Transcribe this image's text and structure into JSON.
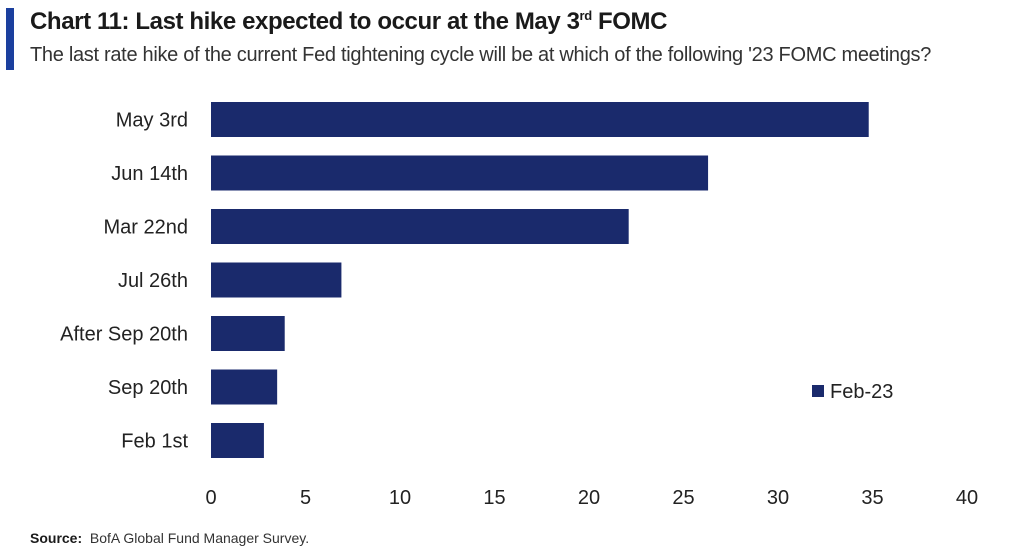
{
  "header": {
    "title_main": "Chart 11: Last hike expected to occur at the May 3",
    "title_sup": "rd",
    "title_end": " FOMC",
    "subtitle": "The last rate hike of the current Fed tightening cycle will be at which of the following '23 FOMC meetings?"
  },
  "source": {
    "label": "Source:",
    "text": "BofA Global Fund Manager Survey."
  },
  "colors": {
    "bar": "#1a2a6c",
    "accent": "#1b3f9e"
  },
  "chart_data": {
    "type": "bar",
    "orientation": "horizontal",
    "categories": [
      "May 3rd",
      "Jun 14th",
      "Mar 22nd",
      "Jul 26th",
      "After Sep 20th",
      "Sep 20th",
      "Feb 1st"
    ],
    "series": [
      {
        "name": "Feb-23",
        "values": [
          34.8,
          26.3,
          22.1,
          6.9,
          3.9,
          3.5,
          2.8
        ]
      }
    ],
    "xlim": [
      0,
      40
    ],
    "xticks": [
      0,
      5,
      10,
      15,
      20,
      25,
      30,
      35,
      40
    ],
    "grid": false,
    "legend": "right"
  }
}
